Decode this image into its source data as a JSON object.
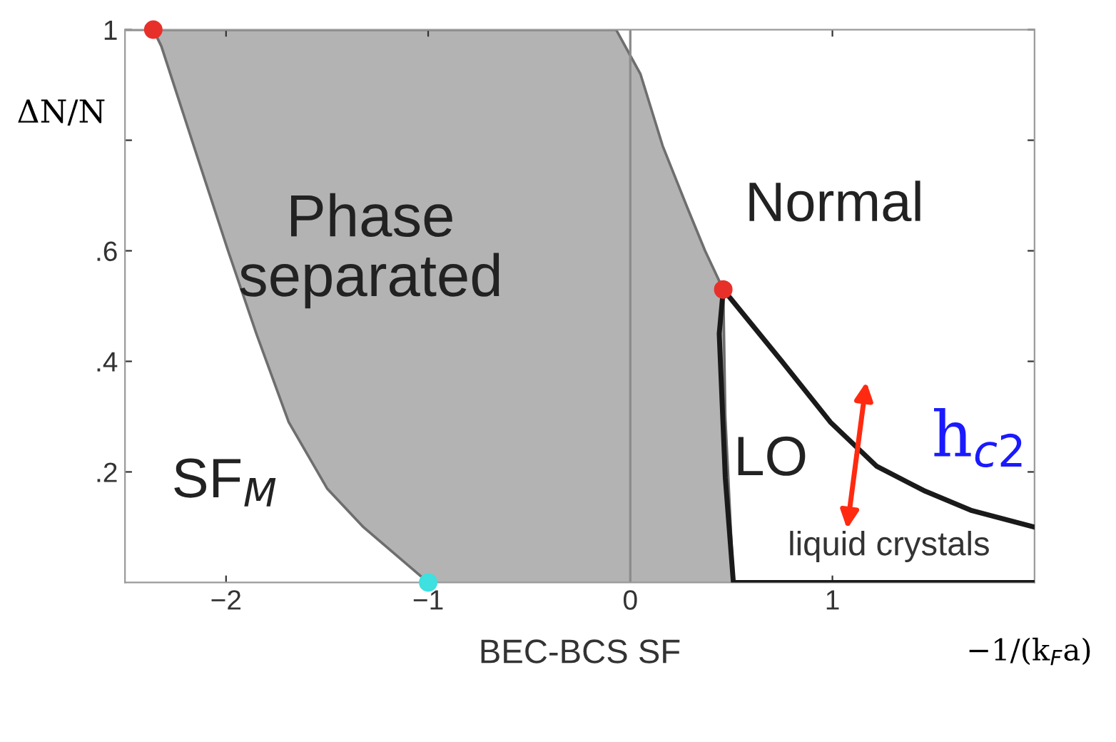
{
  "chart_data": {
    "type": "line",
    "xlabel": "−1/(k$_{F}$a)",
    "ylabel": "ΔN/N",
    "xlim": [
      -2.5,
      2
    ],
    "ylim": [
      0,
      1
    ],
    "xticks": [
      {
        "value": -2,
        "label": "−2"
      },
      {
        "value": -1,
        "label": "−1"
      },
      0,
      1
    ],
    "yticks": [
      {
        "value": 0.2,
        "label": ".2"
      },
      {
        "value": 0.4,
        "label": ".4"
      },
      {
        "value": 0.6,
        "label": ".6"
      },
      {
        "value": 0.8,
        "label": null
      },
      1
    ],
    "grid": false,
    "legend": false,
    "ref_lines": [
      {
        "axis": "x",
        "value": 0,
        "color": "#8c8c8c"
      }
    ],
    "series": [
      {
        "type": "area",
        "color": "#b3b3b3",
        "x": [
          -2.36,
          -2.32,
          -2.16,
          -1.99,
          -1.85,
          -1.69,
          -1.5,
          -1.32,
          -1.0,
          -0.07,
          0.05,
          0.16,
          0.28,
          0.37,
          0.46,
          0.47,
          0.51
        ],
        "values": [
          1,
          1,
          1,
          1,
          1,
          1,
          1,
          1,
          1,
          1,
          0.92,
          0.79,
          0.68,
          0.6,
          0.53,
          0.3,
          0
        ]
      },
      {
        "type": "area",
        "color": "#ffffff",
        "x": [
          -2.5,
          -2.36,
          -2.32,
          -2.16,
          -1.99,
          -1.85,
          -1.69,
          -1.5,
          -1.32,
          -1.0
        ],
        "values": [
          1,
          1,
          0.97,
          0.79,
          0.6,
          0.45,
          0.29,
          0.17,
          0.1,
          0
        ]
      },
      {
        "color": "#1a1a1a",
        "x": [
          0.46,
          0.75,
          0.99,
          1.22,
          1.46,
          1.69,
          2.0
        ],
        "values": [
          0.53,
          0.4,
          0.29,
          0.21,
          0.165,
          0.13,
          0.1
        ]
      },
      {
        "color": "#1a1a1a",
        "x": [
          0.46,
          0.44,
          0.47,
          0.51,
          2.0
        ],
        "values": [
          0.53,
          0.45,
          0.19,
          0,
          0
        ]
      },
      {
        "type": "scatter",
        "color": "#e8302a",
        "x": [
          -2.36,
          0.46
        ],
        "values": [
          1,
          0.53
        ]
      },
      {
        "type": "scatter",
        "color": "#3ee0e0",
        "x": [
          -1.0
        ],
        "values": [
          0
        ]
      }
    ],
    "annotations": [
      "Phase\nseparated",
      "Normal",
      "SF$_{M}$",
      "LO",
      "liquid crystals",
      "h$_{c2}$",
      "BEC-BCS SF"
    ]
  }
}
